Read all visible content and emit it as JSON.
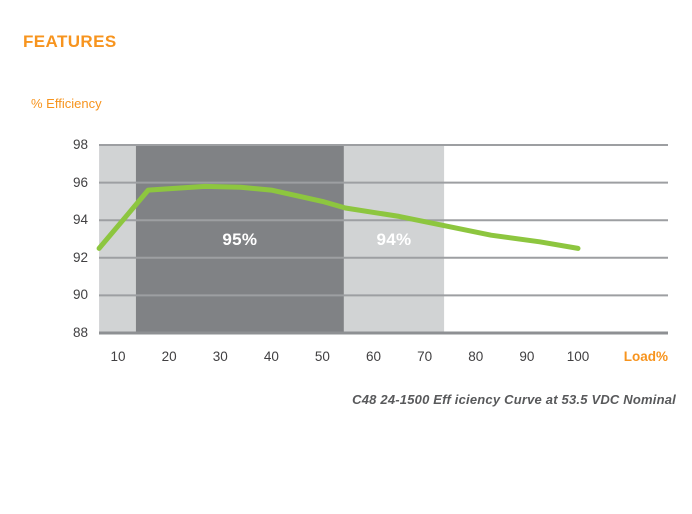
{
  "page": {
    "title": "FEATURES"
  },
  "chart": {
    "y_axis_title": "% Efficiency",
    "x_axis_title": "Load%",
    "caption": "C48 24-1500 Eff iciency Curve at 53.5 VDC Nominal"
  },
  "colors": {
    "accent_orange": "#F7941E",
    "line_green": "#8DC63F",
    "band_dark_gray": "#808285",
    "band_light_gray": "#D1D3D4",
    "gridline_gray": "#9D9FA2",
    "axis_text_gray": "#414042",
    "caption_gray": "#58595B"
  },
  "chart_data": {
    "type": "line",
    "title": "C48 24-1500 Eff iciency Curve at 53.5 VDC Nominal",
    "xlabel": "Load%",
    "ylabel": "% Efficiency",
    "x_ticks": [
      10,
      20,
      30,
      40,
      50,
      60,
      70,
      80,
      90,
      100
    ],
    "y_ticks": [
      98,
      96,
      94,
      92,
      90,
      88
    ],
    "xlim": [
      6,
      118
    ],
    "ylim": [
      88,
      98
    ],
    "grid": "horizontal",
    "legend": "none",
    "bands": [
      {
        "from": 6.3,
        "to": 13.5,
        "color": "#D1D3D4",
        "label": ""
      },
      {
        "from": 13.5,
        "to": 54.2,
        "color": "#808285",
        "label": "95%"
      },
      {
        "from": 54.2,
        "to": 73.8,
        "color": "#D1D3D4",
        "label": "94%"
      }
    ],
    "series": [
      {
        "name": "efficiency-curve",
        "color": "#8DC63F",
        "points": [
          [
            6.3,
            92.5
          ],
          [
            15.9,
            95.6
          ],
          [
            27,
            95.8
          ],
          [
            34,
            95.75
          ],
          [
            40,
            95.6
          ],
          [
            50,
            95.0
          ],
          [
            54.5,
            94.65
          ],
          [
            65,
            94.2
          ],
          [
            74,
            93.7
          ],
          [
            83,
            93.2
          ],
          [
            92.5,
            92.85
          ],
          [
            100,
            92.5
          ]
        ]
      }
    ]
  }
}
